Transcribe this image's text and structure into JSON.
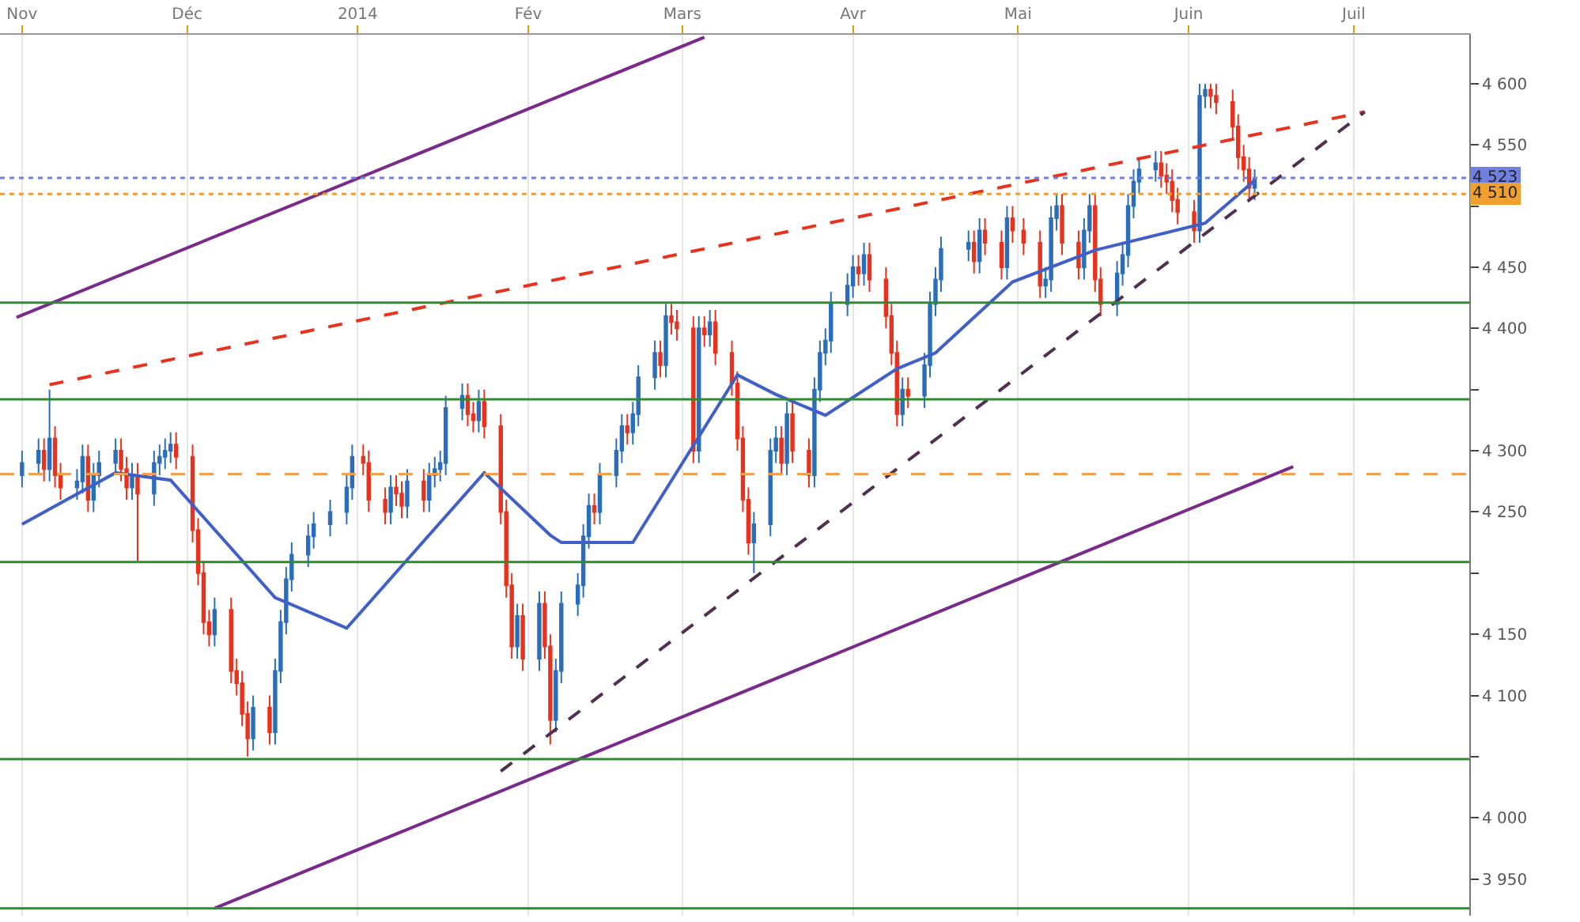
{
  "chart_data": {
    "type": "candlestick",
    "grid": "x",
    "xlim": [
      "2013-10-28",
      "2014-07-22"
    ],
    "ylim": [
      3920,
      4640
    ],
    "xticks": [
      {
        "value": "2013-11-01",
        "label": "Nov"
      },
      {
        "value": "2013-12-01",
        "label": "Déc"
      },
      {
        "value": "2014-01-01",
        "label": "2014"
      },
      {
        "value": "2014-02-01",
        "label": "Fév"
      },
      {
        "value": "2014-03-01",
        "label": "Mars"
      },
      {
        "value": "2014-04-01",
        "label": "Avr"
      },
      {
        "value": "2014-05-01",
        "label": "Mai"
      },
      {
        "value": "2014-06-01",
        "label": "Juin"
      },
      {
        "value": "2014-07-01",
        "label": "Juil"
      }
    ],
    "yticks": [
      {
        "value": 4600,
        "label": "4 600"
      },
      {
        "value": 4550,
        "label": "4 550"
      },
      {
        "value": 4500,
        "label": null
      },
      {
        "value": 4450,
        "label": "4 450"
      },
      {
        "value": 4400,
        "label": "4 400"
      },
      {
        "value": 4350,
        "label": null
      },
      {
        "value": 4300,
        "label": "4 300"
      },
      {
        "value": 4250,
        "label": "4 250"
      },
      {
        "value": 4200,
        "label": null
      },
      {
        "value": 4150,
        "label": "4 150"
      },
      {
        "value": 4100,
        "label": "4 100"
      },
      {
        "value": 4050,
        "label": null
      },
      {
        "value": 4000,
        "label": "4 000"
      },
      {
        "value": 3950,
        "label": "3 950"
      }
    ],
    "ref_lines": [
      {
        "axis": "y",
        "value": 4421,
        "color": "#2e8b2e",
        "line_style": "solid"
      },
      {
        "axis": "y",
        "value": 4342,
        "color": "#2e8b2e",
        "line_style": "solid"
      },
      {
        "axis": "y",
        "value": 4281,
        "color": "#f0a050",
        "line_style": "dashed"
      },
      {
        "axis": "y",
        "value": 4209,
        "color": "#2e8b2e",
        "line_style": "solid"
      },
      {
        "axis": "y",
        "value": 4048,
        "color": "#2e8b2e",
        "line_style": "solid"
      },
      {
        "axis": "y",
        "value": 3926,
        "color": "#2e8b2e",
        "line_style": "solid"
      },
      {
        "axis": "y",
        "value": 4523,
        "label": "4 523",
        "color": "#7080e0",
        "line_style": "dotted"
      },
      {
        "axis": "y",
        "value": 4510,
        "label": "4 510",
        "color": "#f0a030",
        "line_style": "dotted"
      }
    ],
    "series": [
      {
        "type": "line",
        "color": "#7a2a8a",
        "line_style": "solid",
        "x": [
          "2013-10-31",
          "2014-03-05"
        ],
        "values": [
          4409,
          4638
        ]
      },
      {
        "type": "line",
        "color": "#7a2a8a",
        "line_style": "solid",
        "x": [
          "2013-12-06",
          "2014-06-20"
        ],
        "values": [
          3926,
          4287
        ]
      },
      {
        "type": "line",
        "color": "#e8321e",
        "line_style": "dashed",
        "x": [
          "2013-11-06",
          "2014-07-03"
        ],
        "values": [
          4354,
          4577
        ]
      },
      {
        "type": "line",
        "color": "#503050",
        "line_style": "dashed",
        "x": [
          "2014-01-27",
          "2014-07-03"
        ],
        "values": [
          4038,
          4577
        ]
      },
      {
        "type": "line",
        "color": "#4060c8",
        "line_style": "solid",
        "x": [
          "2013-11-01",
          "2013-11-18",
          "2013-11-28",
          "2013-12-17",
          "2013-12-30",
          "2014-01-24",
          "2014-02-05",
          "2014-02-07",
          "2014-02-20",
          "2014-03-11",
          "2014-03-18",
          "2014-03-27",
          "2014-04-09",
          "2014-04-16",
          "2014-04-30",
          "2014-05-15",
          "2014-06-04",
          "2014-06-13"
        ],
        "values": [
          4240,
          4282,
          4276,
          4180,
          4155,
          4282,
          4231,
          4225,
          4225,
          4362,
          4346,
          4329,
          4367,
          4380,
          4438,
          4464,
          4486,
          4521
        ]
      },
      {
        "colors": [
          "#2a6ebb",
          "#2a6ebb",
          "#e8321e",
          "#2a6ebb",
          "#e8321e",
          "#e8321e",
          "#2a6ebb",
          "#2a6ebb",
          "#e8321e",
          "#2a6ebb",
          "#2a6ebb",
          "#2a6ebb",
          "#e8321e",
          "#e8321e",
          "#2a6ebb",
          "#e8321e",
          "#2a6ebb",
          "#2a6ebb",
          "#2a6ebb",
          "#2a6ebb",
          "#e8321e",
          "#e8321e",
          "#e8321e",
          "#e8321e",
          "#e8321e",
          "#2a6ebb",
          "#e8321e",
          "#e8321e",
          "#e8321e",
          "#e8321e",
          "#2a6ebb",
          "#e8321e",
          "#2a6ebb",
          "#2a6ebb",
          "#2a6ebb",
          "#2a6ebb",
          "#2a6ebb",
          "#2a6ebb",
          "#2a6ebb",
          "#2a6ebb",
          "#2a6ebb",
          "#e8321e",
          "#e8321e",
          "#e8321e",
          "#2a6ebb",
          "#e8321e",
          "#e8321e",
          "#2a6ebb",
          "#e8321e",
          "#2a6ebb",
          "#2a6ebb",
          "#2a6ebb",
          "#2a6ebb",
          "#2a6ebb",
          "#e8321e",
          "#e8321e",
          "#2a6ebb",
          "#e8321e",
          "#e8321e",
          "#e8321e",
          "#e8321e",
          "#2a6ebb",
          "#e8321e",
          "#2a6ebb",
          "#e8321e",
          "#e8321e",
          "#2a6ebb",
          "#2a6ebb",
          "#2a6ebb",
          "#2a6ebb",
          "#2a6ebb",
          "#e8321e",
          "#2a6ebb",
          "#2a6ebb",
          "#2a6ebb",
          "#e8321e",
          "#2a6ebb",
          "#2a6ebb",
          "#2a6ebb",
          "#e8321e",
          "#2a6ebb",
          "#e8321e",
          "#e8321e",
          "#e8321e",
          "#2a6ebb",
          "#e8321e",
          "#2a6ebb",
          "#e8321e",
          "#e8321e",
          "#e8321e",
          "#e8321e",
          "#e8321e",
          "#2a6ebb",
          "#2a6ebb",
          "#2a6ebb",
          "#e8321e",
          "#2a6ebb",
          "#e8321e",
          "#e8321e",
          "#2a6ebb",
          "#2a6ebb",
          "#2a6ebb",
          "#2a6ebb",
          "#2a6ebb",
          "#2a6ebb",
          "#e8321e",
          "#2a6ebb",
          "#e8321e",
          "#e8321e",
          "#e8321e",
          "#e8321e",
          "#2a6ebb",
          "#e8321e",
          "#2a6ebb",
          "#2a6ebb",
          "#2a6ebb",
          "#2a6ebb",
          "#2a6ebb",
          "#e8321e",
          "#2a6ebb",
          "#e8321e",
          "#e8321e",
          "#2a6ebb",
          "#e8321e",
          "#e8321e",
          "#e8321e",
          "#2a6ebb",
          "#2a6ebb",
          "#2a6ebb",
          "#e8321e",
          "#e8321e",
          "#2a6ebb",
          "#2a6ebb",
          "#e8321e",
          "#e8321e",
          "#2a6ebb",
          "#2a6ebb",
          "#2a6ebb",
          "#2a6ebb",
          "#2a6ebb",
          "#2a6ebb",
          "#e8321e",
          "#e8321e",
          "#e8321e",
          "#e8321e",
          "#e8321e",
          "#2a6ebb",
          "#2a6ebb",
          "#e8321e",
          "#e8321e",
          "#e8321e",
          "#e8321e",
          "#e8321e",
          "#e8321e",
          "#2a6ebb"
        ],
        "x": [
          "2013-11-01",
          "2013-11-04",
          "2013-11-05",
          "2013-11-06",
          "2013-11-07",
          "2013-11-08",
          "2013-11-11",
          "2013-11-12",
          "2013-11-13",
          "2013-11-14",
          "2013-11-15",
          "2013-11-18",
          "2013-11-19",
          "2013-11-20",
          "2013-11-21",
          "2013-11-22",
          "2013-11-25",
          "2013-11-26",
          "2013-11-27",
          "2013-11-28",
          "2013-11-29",
          "2013-12-02",
          "2013-12-03",
          "2013-12-04",
          "2013-12-05",
          "2013-12-06",
          "2013-12-09",
          "2013-12-10",
          "2013-12-11",
          "2013-12-12",
          "2013-12-13",
          "2013-12-16",
          "2013-12-17",
          "2013-12-18",
          "2013-12-19",
          "2013-12-20",
          "2013-12-23",
          "2013-12-24",
          "2013-12-27",
          "2013-12-30",
          "2013-12-31",
          "2014-01-02",
          "2014-01-03",
          "2014-01-06",
          "2014-01-07",
          "2014-01-08",
          "2014-01-09",
          "2014-01-10",
          "2014-01-13",
          "2014-01-14",
          "2014-01-15",
          "2014-01-16",
          "2014-01-17",
          "2014-01-20",
          "2014-01-21",
          "2014-01-22",
          "2014-01-23",
          "2014-01-24",
          "2014-01-27",
          "2014-01-28",
          "2014-01-29",
          "2014-01-30",
          "2014-01-31",
          "2014-02-03",
          "2014-02-04",
          "2014-02-05",
          "2014-02-06",
          "2014-02-07",
          "2014-02-10",
          "2014-02-11",
          "2014-02-12",
          "2014-02-13",
          "2014-02-14",
          "2014-02-17",
          "2014-02-18",
          "2014-02-19",
          "2014-02-20",
          "2014-02-21",
          "2014-02-24",
          "2014-02-25",
          "2014-02-26",
          "2014-02-27",
          "2014-02-28",
          "2014-03-03",
          "2014-03-04",
          "2014-03-05",
          "2014-03-06",
          "2014-03-07",
          "2014-03-10",
          "2014-03-11",
          "2014-03-12",
          "2014-03-13",
          "2014-03-14",
          "2014-03-17",
          "2014-03-18",
          "2014-03-19",
          "2014-03-20",
          "2014-03-21",
          "2014-03-24",
          "2014-03-25",
          "2014-03-26",
          "2014-03-27",
          "2014-03-28",
          "2014-03-31",
          "2014-04-01",
          "2014-04-02",
          "2014-04-03",
          "2014-04-04",
          "2014-04-07",
          "2014-04-08",
          "2014-04-09",
          "2014-04-10",
          "2014-04-11",
          "2014-04-14",
          "2014-04-15",
          "2014-04-16",
          "2014-04-17",
          "2014-04-22",
          "2014-04-23",
          "2014-04-24",
          "2014-04-25",
          "2014-04-28",
          "2014-04-29",
          "2014-04-30",
          "2014-05-02",
          "2014-05-05",
          "2014-05-06",
          "2014-05-07",
          "2014-05-08",
          "2014-05-09",
          "2014-05-12",
          "2014-05-13",
          "2014-05-14",
          "2014-05-15",
          "2014-05-16",
          "2014-05-19",
          "2014-05-20",
          "2014-05-21",
          "2014-05-22",
          "2014-05-23",
          "2014-05-26",
          "2014-05-27",
          "2014-05-28",
          "2014-05-29",
          "2014-05-30",
          "2014-06-02",
          "2014-06-03",
          "2014-06-04",
          "2014-06-05",
          "2014-06-06",
          "2014-06-09",
          "2014-06-10",
          "2014-06-11",
          "2014-06-12",
          "2014-06-13"
        ],
        "ohlc": [
          [
            4280,
            4300,
            4270,
            4290
          ],
          [
            4290,
            4310,
            4280,
            4300
          ],
          [
            4300,
            4310,
            4275,
            4285
          ],
          [
            4285,
            4350,
            4275,
            4310
          ],
          [
            4310,
            4320,
            4270,
            4280
          ],
          [
            4280,
            4290,
            4260,
            4270
          ],
          [
            4270,
            4285,
            4260,
            4275
          ],
          [
            4275,
            4305,
            4265,
            4295
          ],
          [
            4295,
            4305,
            4250,
            4260
          ],
          [
            4260,
            4290,
            4250,
            4280
          ],
          [
            4280,
            4300,
            4270,
            4290
          ],
          [
            4290,
            4310,
            4280,
            4300
          ],
          [
            4300,
            4310,
            4275,
            4285
          ],
          [
            4285,
            4295,
            4260,
            4270
          ],
          [
            4270,
            4290,
            4260,
            4280
          ],
          [
            4280,
            4290,
            4210,
            4265
          ],
          [
            4265,
            4300,
            4255,
            4290
          ],
          [
            4290,
            4305,
            4280,
            4295
          ],
          [
            4295,
            4310,
            4285,
            4300
          ],
          [
            4300,
            4315,
            4290,
            4305
          ],
          [
            4305,
            4315,
            4285,
            4295
          ],
          [
            4295,
            4305,
            4225,
            4235
          ],
          [
            4235,
            4245,
            4190,
            4200
          ],
          [
            4200,
            4210,
            4150,
            4160
          ],
          [
            4160,
            4170,
            4140,
            4150
          ],
          [
            4150,
            4180,
            4140,
            4170
          ],
          [
            4170,
            4180,
            4110,
            4120
          ],
          [
            4120,
            4130,
            4100,
            4110
          ],
          [
            4110,
            4120,
            4075,
            4085
          ],
          [
            4085,
            4095,
            4050,
            4065
          ],
          [
            4065,
            4100,
            4055,
            4090
          ],
          [
            4090,
            4100,
            4060,
            4070
          ],
          [
            4070,
            4130,
            4060,
            4120
          ],
          [
            4120,
            4170,
            4110,
            4160
          ],
          [
            4160,
            4205,
            4150,
            4195
          ],
          [
            4195,
            4225,
            4185,
            4215
          ],
          [
            4215,
            4240,
            4205,
            4230
          ],
          [
            4230,
            4250,
            4220,
            4240
          ],
          [
            4240,
            4260,
            4230,
            4250
          ],
          [
            4250,
            4280,
            4240,
            4270
          ],
          [
            4270,
            4305,
            4260,
            4295
          ],
          [
            4295,
            4305,
            4280,
            4290
          ],
          [
            4290,
            4300,
            4250,
            4260
          ],
          [
            4260,
            4270,
            4240,
            4250
          ],
          [
            4250,
            4280,
            4240,
            4270
          ],
          [
            4270,
            4280,
            4255,
            4265
          ],
          [
            4265,
            4275,
            4245,
            4255
          ],
          [
            4255,
            4285,
            4245,
            4275
          ],
          [
            4275,
            4285,
            4250,
            4260
          ],
          [
            4260,
            4290,
            4250,
            4280
          ],
          [
            4280,
            4295,
            4270,
            4285
          ],
          [
            4285,
            4300,
            4275,
            4290
          ],
          [
            4290,
            4345,
            4280,
            4335
          ],
          [
            4335,
            4355,
            4325,
            4345
          ],
          [
            4345,
            4355,
            4320,
            4330
          ],
          [
            4330,
            4340,
            4315,
            4325
          ],
          [
            4325,
            4350,
            4315,
            4340
          ],
          [
            4340,
            4350,
            4310,
            4320
          ],
          [
            4320,
            4330,
            4240,
            4250
          ],
          [
            4250,
            4260,
            4180,
            4190
          ],
          [
            4190,
            4200,
            4130,
            4140
          ],
          [
            4140,
            4175,
            4130,
            4165
          ],
          [
            4165,
            4175,
            4120,
            4130
          ],
          [
            4130,
            4185,
            4120,
            4175
          ],
          [
            4175,
            4185,
            4130,
            4140
          ],
          [
            4140,
            4150,
            4060,
            4080
          ],
          [
            4080,
            4130,
            4070,
            4120
          ],
          [
            4120,
            4185,
            4110,
            4175
          ],
          [
            4175,
            4200,
            4165,
            4190
          ],
          [
            4190,
            4240,
            4180,
            4230
          ],
          [
            4230,
            4265,
            4220,
            4255
          ],
          [
            4255,
            4265,
            4240,
            4250
          ],
          [
            4250,
            4290,
            4240,
            4280
          ],
          [
            4280,
            4310,
            4270,
            4300
          ],
          [
            4300,
            4330,
            4290,
            4320
          ],
          [
            4320,
            4330,
            4305,
            4315
          ],
          [
            4315,
            4340,
            4305,
            4330
          ],
          [
            4330,
            4370,
            4320,
            4360
          ],
          [
            4360,
            4390,
            4350,
            4380
          ],
          [
            4380,
            4390,
            4360,
            4370
          ],
          [
            4370,
            4420,
            4360,
            4410
          ],
          [
            4410,
            4420,
            4395,
            4405
          ],
          [
            4405,
            4415,
            4390,
            4400
          ],
          [
            4400,
            4410,
            4290,
            4300
          ],
          [
            4300,
            4410,
            4290,
            4400
          ],
          [
            4400,
            4410,
            4385,
            4395
          ],
          [
            4395,
            4415,
            4385,
            4405
          ],
          [
            4405,
            4415,
            4370,
            4380
          ],
          [
            4380,
            4390,
            4345,
            4355
          ],
          [
            4355,
            4365,
            4300,
            4310
          ],
          [
            4310,
            4320,
            4250,
            4260
          ],
          [
            4260,
            4270,
            4215,
            4225
          ],
          [
            4225,
            4250,
            4200,
            4240
          ],
          [
            4240,
            4310,
            4230,
            4300
          ],
          [
            4300,
            4320,
            4290,
            4310
          ],
          [
            4310,
            4320,
            4280,
            4290
          ],
          [
            4290,
            4340,
            4280,
            4330
          ],
          [
            4330,
            4340,
            4290,
            4300
          ],
          [
            4300,
            4310,
            4270,
            4280
          ],
          [
            4280,
            4360,
            4270,
            4350
          ],
          [
            4350,
            4390,
            4340,
            4380
          ],
          [
            4380,
            4400,
            4370,
            4390
          ],
          [
            4390,
            4430,
            4380,
            4420
          ],
          [
            4420,
            4445,
            4410,
            4435
          ],
          [
            4435,
            4460,
            4425,
            4450
          ],
          [
            4450,
            4460,
            4435,
            4445
          ],
          [
            4445,
            4470,
            4435,
            4460
          ],
          [
            4460,
            4470,
            4430,
            4440
          ],
          [
            4440,
            4450,
            4400,
            4410
          ],
          [
            4410,
            4420,
            4370,
            4380
          ],
          [
            4380,
            4390,
            4320,
            4330
          ],
          [
            4330,
            4360,
            4320,
            4350
          ],
          [
            4350,
            4360,
            4335,
            4345
          ],
          [
            4345,
            4380,
            4335,
            4370
          ],
          [
            4370,
            4430,
            4360,
            4420
          ],
          [
            4420,
            4450,
            4410,
            4440
          ],
          [
            4440,
            4475,
            4430,
            4465
          ],
          [
            4465,
            4480,
            4455,
            4470
          ],
          [
            4470,
            4480,
            4445,
            4455
          ],
          [
            4455,
            4490,
            4445,
            4480
          ],
          [
            4480,
            4490,
            4460,
            4470
          ],
          [
            4470,
            4480,
            4440,
            4450
          ],
          [
            4450,
            4500,
            4440,
            4490
          ],
          [
            4490,
            4500,
            4470,
            4480
          ],
          [
            4480,
            4490,
            4460,
            4470
          ],
          [
            4470,
            4480,
            4425,
            4435
          ],
          [
            4435,
            4450,
            4425,
            4440
          ],
          [
            4440,
            4500,
            4430,
            4490
          ],
          [
            4490,
            4510,
            4480,
            4500
          ],
          [
            4500,
            4510,
            4460,
            4470
          ],
          [
            4470,
            4480,
            4440,
            4450
          ],
          [
            4450,
            4490,
            4440,
            4480
          ],
          [
            4480,
            4510,
            4470,
            4500
          ],
          [
            4500,
            4510,
            4430,
            4440
          ],
          [
            4440,
            4450,
            4410,
            4420
          ],
          [
            4420,
            4455,
            4410,
            4445
          ],
          [
            4445,
            4470,
            4435,
            4460
          ],
          [
            4460,
            4510,
            4450,
            4500
          ],
          [
            4500,
            4530,
            4490,
            4520
          ],
          [
            4520,
            4540,
            4510,
            4530
          ],
          [
            4530,
            4545,
            4520,
            4535
          ],
          [
            4535,
            4545,
            4515,
            4525
          ],
          [
            4525,
            4535,
            4510,
            4520
          ],
          [
            4520,
            4530,
            4495,
            4505
          ],
          [
            4505,
            4515,
            4485,
            4495
          ],
          [
            4495,
            4505,
            4470,
            4480
          ],
          [
            4480,
            4600,
            4470,
            4590
          ],
          [
            4590,
            4600,
            4580,
            4595
          ],
          [
            4595,
            4600,
            4580,
            4590
          ],
          [
            4590,
            4600,
            4575,
            4585
          ],
          [
            4585,
            4595,
            4555,
            4565
          ],
          [
            4565,
            4575,
            4530,
            4540
          ],
          [
            4540,
            4550,
            4520,
            4530
          ],
          [
            4530,
            4540,
            4505,
            4515
          ],
          [
            4515,
            4530,
            4505,
            4523
          ]
        ]
      }
    ]
  }
}
